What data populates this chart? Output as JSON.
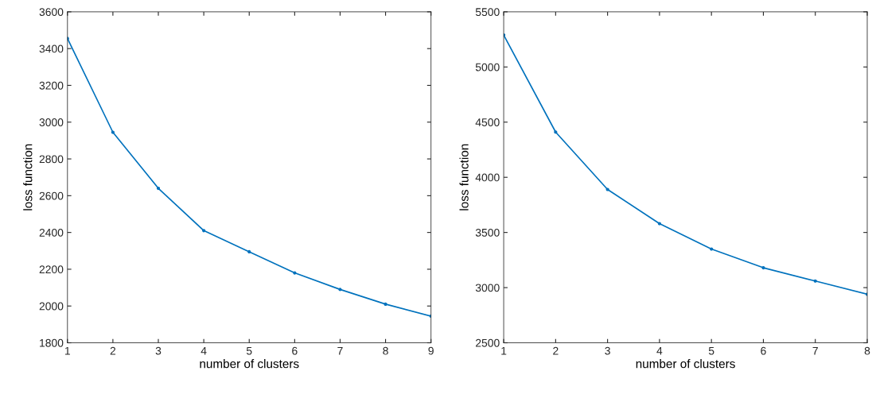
{
  "chart_data": [
    {
      "type": "line",
      "xlabel": "number of clusters",
      "ylabel": "loss function",
      "x": [
        1,
        2,
        3,
        4,
        5,
        6,
        7,
        8,
        9
      ],
      "series": [
        {
          "color": "#0072bd",
          "values": [
            3455,
            2945,
            2640,
            2410,
            2295,
            2180,
            2090,
            2010,
            1945
          ]
        }
      ],
      "xlim": [
        1,
        9
      ],
      "xticks": [
        1,
        2,
        3,
        4,
        5,
        6,
        7,
        8,
        9
      ],
      "ylim": [
        1800,
        3600
      ],
      "yticks": [
        1800,
        2000,
        2200,
        2400,
        2600,
        2800,
        3000,
        3200,
        3400,
        3600
      ],
      "marker": "circle",
      "grid": false,
      "legend": false
    },
    {
      "type": "line",
      "xlabel": "number of clusters",
      "ylabel": "loss function",
      "x": [
        1,
        2,
        3,
        4,
        5,
        6,
        7,
        8
      ],
      "series": [
        {
          "color": "#0072bd",
          "values": [
            5290,
            4410,
            3890,
            3580,
            3350,
            3180,
            3060,
            2940
          ]
        }
      ],
      "xlim": [
        1,
        8
      ],
      "xticks": [
        1,
        2,
        3,
        4,
        5,
        6,
        7,
        8
      ],
      "ylim": [
        2500,
        5500
      ],
      "yticks": [
        2500,
        3000,
        3500,
        4000,
        4500,
        5000,
        5500
      ],
      "marker": "circle",
      "grid": false,
      "legend": false
    }
  ]
}
